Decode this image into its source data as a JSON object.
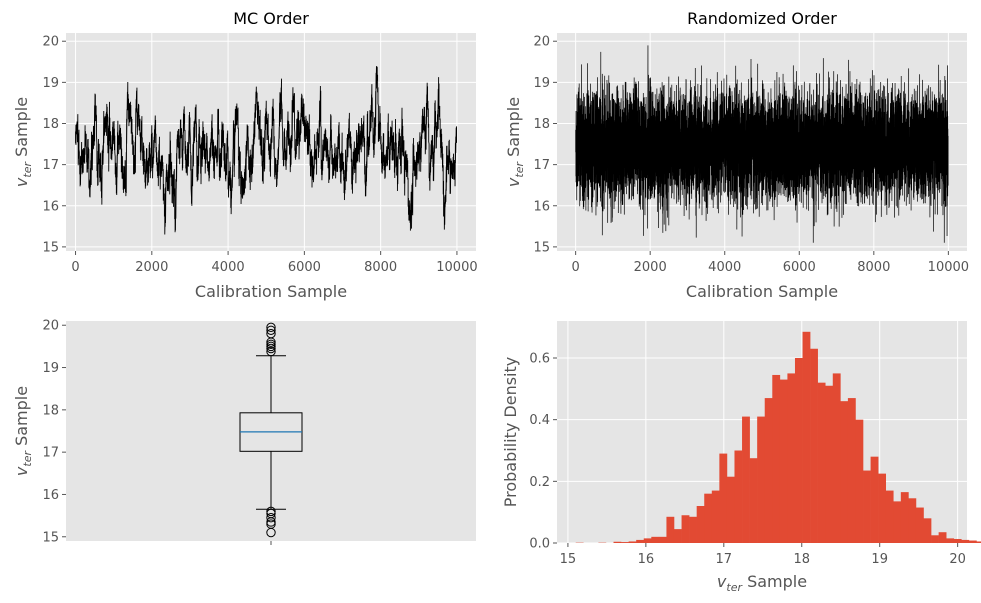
{
  "chart_data": [
    {
      "type": "line",
      "title": "MC Order",
      "xlabel": "Calibration Sample",
      "ylabel": {
        "base": "v",
        "sub": "ter",
        "rest": " Sample"
      },
      "xlim": [
        -250,
        10500
      ],
      "ylim": [
        14.9,
        20.2
      ],
      "xticks": [
        0,
        2000,
        4000,
        6000,
        8000,
        10000
      ],
      "yticks": [
        15,
        16,
        17,
        18,
        19,
        20
      ],
      "grid": true,
      "series": [
        {
          "n_samples": 10000,
          "line_color": "#000000",
          "mean": 17.45,
          "std": 0.65,
          "min": 15.1,
          "max": 19.95
        }
      ]
    },
    {
      "type": "line",
      "title": "Randomized Order",
      "xlabel": "Calibration Sample",
      "ylabel": {
        "base": "v",
        "sub": "ter",
        "rest": " Sample"
      },
      "xlim": [
        -500,
        10500
      ],
      "ylim": [
        14.9,
        20.2
      ],
      "xticks": [
        0,
        2000,
        4000,
        6000,
        8000,
        10000
      ],
      "yticks": [
        15,
        16,
        17,
        18,
        19,
        20
      ],
      "grid": true,
      "series": [
        {
          "n_samples": 10000,
          "line_color": "#000000",
          "mean": 17.45,
          "std": 0.65,
          "min": 15.1,
          "max": 19.95
        }
      ]
    },
    {
      "type": "box",
      "ylabel": {
        "base": "v",
        "sub": "ter",
        "rest": " Sample"
      },
      "ylim": [
        14.9,
        20.1
      ],
      "yticks": [
        15,
        16,
        17,
        18,
        19,
        20
      ],
      "grid": false,
      "box": {
        "q1": 17.02,
        "median": 17.48,
        "q3": 17.93,
        "whisker_low": 15.65,
        "whisker_high": 19.28,
        "median_color": "#1f77b4",
        "outliers": [
          15.1,
          15.3,
          15.35,
          15.45,
          15.55,
          15.6,
          19.38,
          19.45,
          19.5,
          19.55,
          19.6,
          19.8,
          19.88,
          19.95
        ]
      }
    },
    {
      "type": "histogram",
      "xlabel": {
        "base": "v",
        "sub": "ter",
        "rest": " Sample"
      },
      "ylabel": "Probability Density",
      "xlim": [
        14.86,
        20.12
      ],
      "ylim": [
        0,
        0.72
      ],
      "xticks": [
        15,
        16,
        17,
        18,
        19,
        20
      ],
      "yticks": [
        0.0,
        0.2,
        0.4,
        0.6
      ],
      "ytick_labels": [
        "0.0",
        "0.2",
        "0.4",
        "0.6"
      ],
      "bar_color": "#e24a33",
      "bin_start": 15.1,
      "bin_width": 0.097,
      "densities": [
        0.001,
        0.0,
        0.0,
        0.001,
        0.0,
        0.004,
        0.003,
        0.005,
        0.01,
        0.015,
        0.02,
        0.02,
        0.085,
        0.045,
        0.09,
        0.085,
        0.12,
        0.16,
        0.17,
        0.29,
        0.215,
        0.3,
        0.41,
        0.275,
        0.41,
        0.47,
        0.545,
        0.53,
        0.55,
        0.6,
        0.685,
        0.63,
        0.52,
        0.51,
        0.55,
        0.46,
        0.47,
        0.4,
        0.235,
        0.28,
        0.225,
        0.17,
        0.135,
        0.165,
        0.145,
        0.115,
        0.08,
        0.025,
        0.035,
        0.015,
        0.013,
        0.01,
        0.008,
        0.005,
        0.02,
        0.013,
        0.0,
        0.0,
        0.002,
        0.003,
        0.001
      ]
    }
  ]
}
